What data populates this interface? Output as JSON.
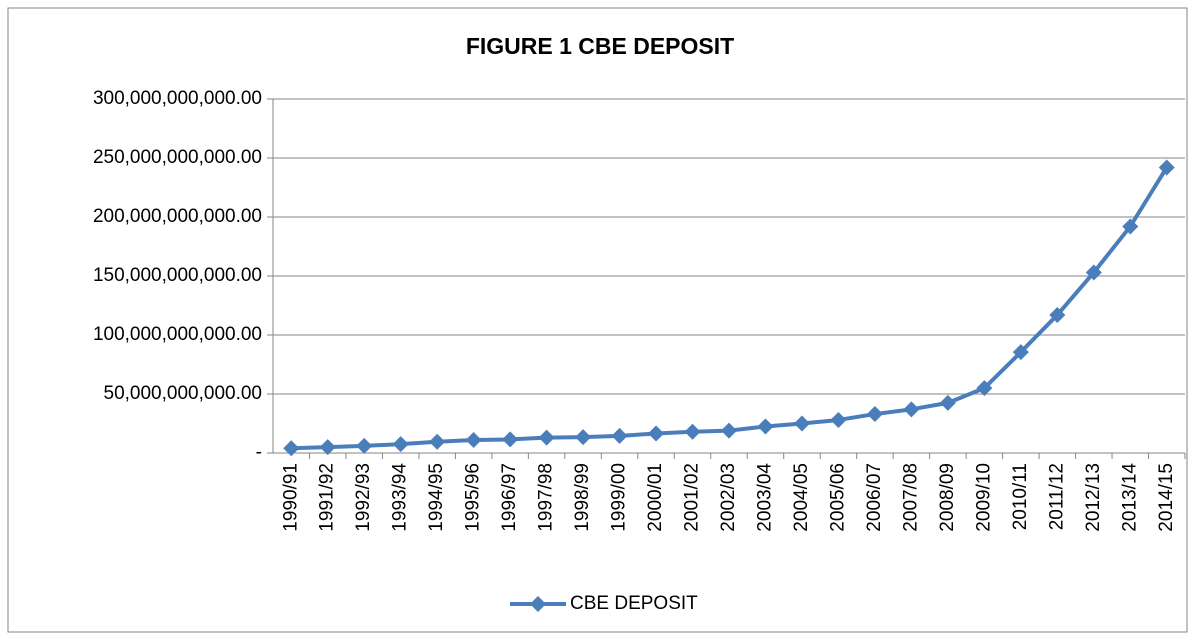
{
  "chart_data": {
    "type": "line",
    "title": "FIGURE 1 CBE DEPOSIT",
    "categories": [
      "1990/91",
      "1991/92",
      "1992/93",
      "1993/94",
      "1994/95",
      "1995/96",
      "1996/97",
      "1997/98",
      "1998/99",
      "1999/00",
      "2000/01",
      "2001/02",
      "2002/03",
      "2003/04",
      "2004/05",
      "2005/06",
      "2006/07",
      "2007/08",
      "2008/09",
      "2009/10",
      "2010/11",
      "2011/12",
      "2012/13",
      "2013/14",
      "2014/15"
    ],
    "series": [
      {
        "name": "CBE DEPOSIT",
        "color": "#4a7ebb",
        "values": [
          4000000000,
          5000000000,
          6000000000,
          7500000000,
          9500000000,
          11000000000,
          11500000000,
          13000000000,
          13500000000,
          14500000000,
          16500000000,
          18000000000,
          19000000000,
          22500000000,
          25000000000,
          28000000000,
          33000000000,
          37000000000,
          42500000000,
          55000000000,
          85500000000,
          117000000000,
          153000000000,
          192000000000,
          242000000000
        ]
      }
    ],
    "ylim": [
      0,
      300000000000
    ],
    "yticks": [
      {
        "value": 0,
        "label": "-"
      },
      {
        "value": 50000000000,
        "label": "50,000,000,000.00"
      },
      {
        "value": 100000000000,
        "label": "100,000,000,000.00"
      },
      {
        "value": 150000000000,
        "label": "150,000,000,000.00"
      },
      {
        "value": 200000000000,
        "label": "200,000,000,000.00"
      },
      {
        "value": 250000000000,
        "label": "250,000,000,000.00"
      },
      {
        "value": 300000000000,
        "label": "300,000,000,000.00"
      }
    ],
    "grid": true,
    "legend": "bottom"
  }
}
